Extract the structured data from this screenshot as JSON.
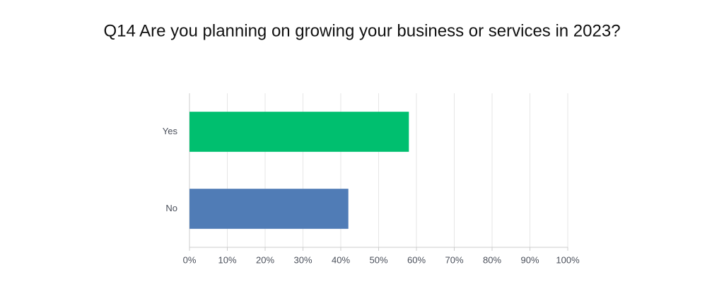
{
  "chart_data": {
    "type": "bar",
    "orientation": "horizontal",
    "title": "Q14 Are you planning on growing your business or services in 2023?",
    "categories": [
      "Yes",
      "No"
    ],
    "values": [
      58,
      42
    ],
    "colors": [
      "#00bf6f",
      "#507cb6"
    ],
    "xlim": [
      0,
      100
    ],
    "xticks": [
      {
        "value": 0,
        "label": "0%"
      },
      {
        "value": 10,
        "label": "10%"
      },
      {
        "value": 20,
        "label": "20%"
      },
      {
        "value": 30,
        "label": "30%"
      },
      {
        "value": 40,
        "label": "40%"
      },
      {
        "value": 50,
        "label": "50%"
      },
      {
        "value": 60,
        "label": "60%"
      },
      {
        "value": 70,
        "label": "70%"
      },
      {
        "value": 80,
        "label": "80%"
      },
      {
        "value": 90,
        "label": "90%"
      },
      {
        "value": 100,
        "label": "100%"
      }
    ],
    "grid": true
  }
}
